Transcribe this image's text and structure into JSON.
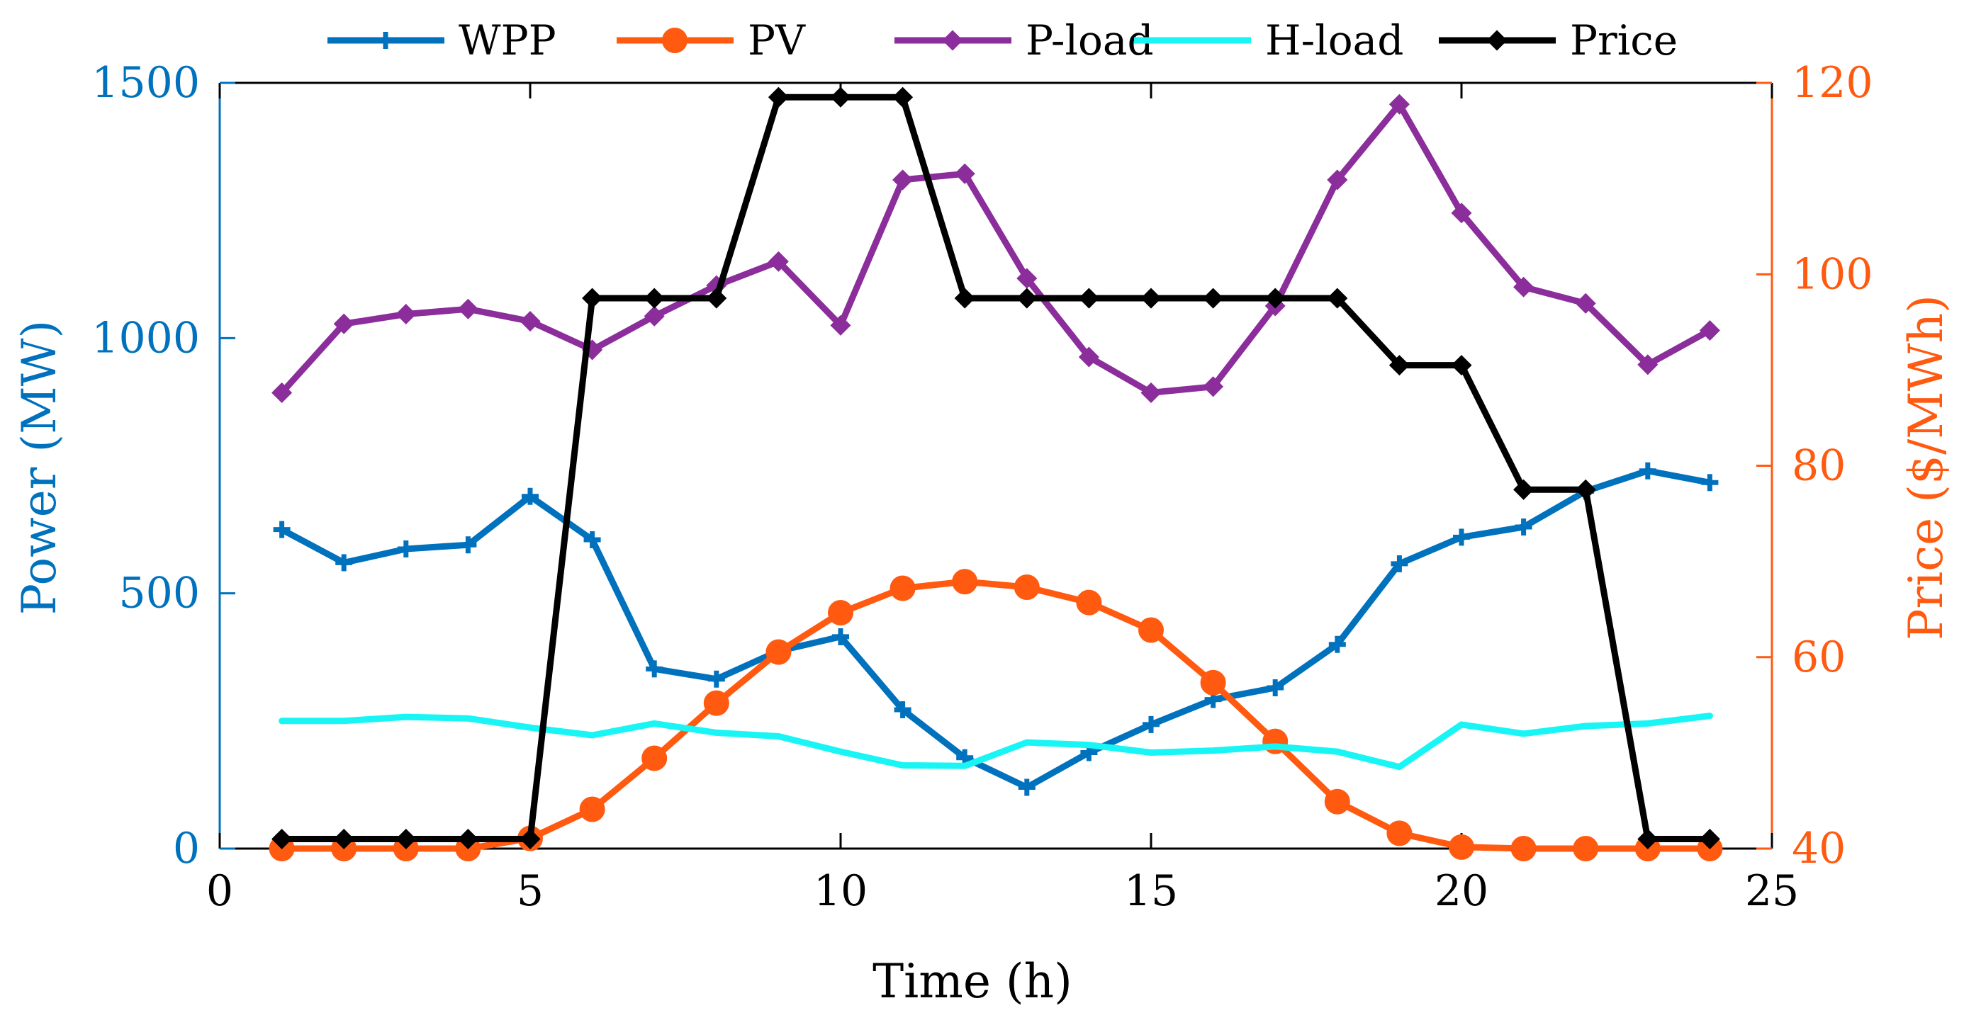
{
  "chart_data": {
    "type": "line",
    "xlabel": "Time (h)",
    "ylabel_left": "Power (MW)",
    "ylabel_right": "Price ($/MWh)",
    "xlim": [
      0,
      25
    ],
    "ylim_left": [
      0,
      1500
    ],
    "ylim_right": [
      40,
      120
    ],
    "xticks": [
      0,
      5,
      10,
      15,
      20,
      25
    ],
    "yticks_left": [
      0,
      500,
      1000,
      1500
    ],
    "yticks_right": [
      40,
      60,
      80,
      100,
      120
    ],
    "grid": false,
    "legend_position": "top",
    "x": [
      1,
      2,
      3,
      4,
      5,
      6,
      7,
      8,
      9,
      10,
      11,
      12,
      13,
      14,
      15,
      16,
      17,
      18,
      19,
      20,
      21,
      22,
      23,
      24
    ],
    "series": [
      {
        "name": "WPP",
        "axis": "left",
        "color": "#0072BD",
        "marker": "plus",
        "values": [
          625,
          560,
          587,
          595,
          690,
          605,
          352,
          332,
          387,
          415,
          272,
          178,
          120,
          188,
          243,
          292,
          315,
          400,
          558,
          610,
          630,
          700,
          740,
          717
        ]
      },
      {
        "name": "PV",
        "axis": "left",
        "color": "#FF5A10",
        "marker": "circle",
        "values": [
          0,
          0,
          0,
          0,
          20,
          77,
          177,
          285,
          385,
          462,
          510,
          523,
          512,
          482,
          428,
          325,
          210,
          92,
          30,
          3,
          0,
          0,
          0,
          0
        ]
      },
      {
        "name": "P-load",
        "axis": "left",
        "color": "#8B2D9B",
        "marker": "diamond",
        "values": [
          893,
          1028,
          1047,
          1057,
          1033,
          977,
          1043,
          1103,
          1150,
          1025,
          1310,
          1322,
          1117,
          963,
          893,
          905,
          1063,
          1310,
          1458,
          1245,
          1100,
          1068,
          948,
          1015
        ]
      },
      {
        "name": "H-load",
        "axis": "left",
        "color": "#19F5F5",
        "marker": "none",
        "values": [
          250,
          250,
          258,
          255,
          237,
          222,
          245,
          227,
          220,
          190,
          163,
          162,
          208,
          203,
          188,
          192,
          200,
          190,
          160,
          243,
          225,
          240,
          245,
          260
        ]
      },
      {
        "name": "Price",
        "axis": "right",
        "color": "#000000",
        "marker": "diamond",
        "values": [
          41,
          41,
          41,
          41,
          41,
          97.5,
          97.5,
          97.5,
          118.5,
          118.5,
          118.5,
          97.5,
          97.5,
          97.5,
          97.5,
          97.5,
          97.5,
          97.5,
          90.5,
          90.5,
          77.5,
          77.5,
          41,
          41
        ]
      }
    ]
  },
  "colors": {
    "left_axis": "#0072BD",
    "right_axis": "#FF5A10",
    "frame": "#000000"
  }
}
